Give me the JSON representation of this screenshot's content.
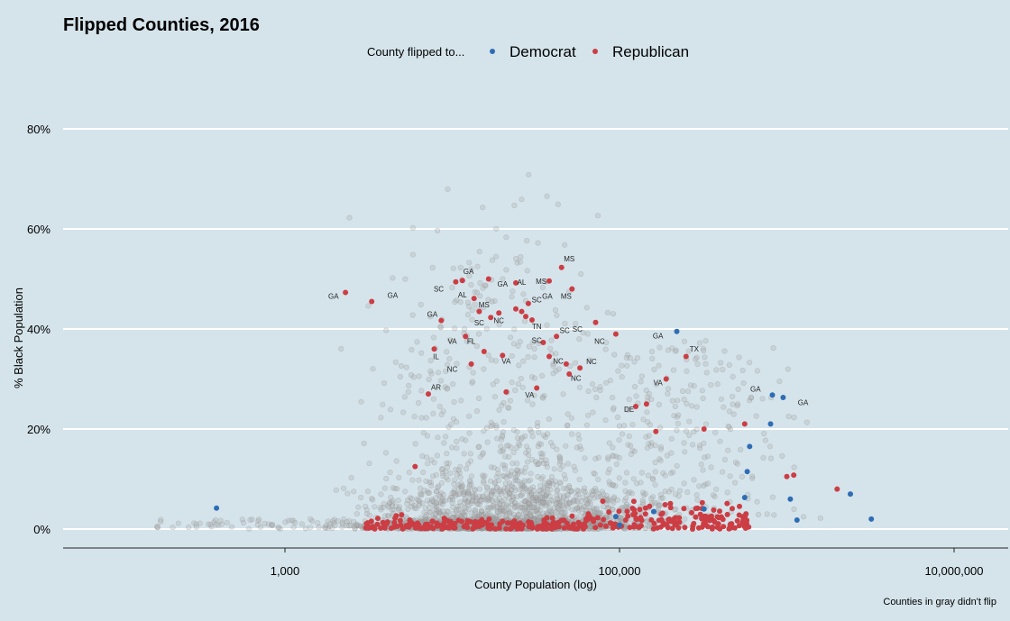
{
  "chart_data": {
    "type": "scatter",
    "title": "Flipped Counties, 2016",
    "xlabel": "County Population (log)",
    "ylabel": "% Black Population",
    "caption": "Counties in gray didn't flip",
    "x_scale": "log10",
    "xlim": [
      80,
      20000000
    ],
    "ylim": [
      -4,
      90
    ],
    "x_ticks": [
      1000,
      100000,
      10000000
    ],
    "x_tick_labels": [
      "1,000",
      "100,000",
      "10,000,000"
    ],
    "y_ticks": [
      0,
      20,
      40,
      60,
      80
    ],
    "y_tick_labels": [
      "0%",
      "20%",
      "40%",
      "60%",
      "80%"
    ],
    "grid": "horizontal major",
    "legend": {
      "title": "County flipped to...",
      "position": "top",
      "entries": [
        {
          "name": "Democrat",
          "color": "#2e6db4"
        },
        {
          "name": "Republican",
          "color": "#cc3d44"
        }
      ]
    },
    "colors": {
      "background": "#d5e4eb",
      "grid": "#ffffff",
      "gray_points": "#a8a8a8",
      "democrat": "#2e6db4",
      "republican": "#cc3d44"
    },
    "series": [
      {
        "name": "Democrat",
        "points": [
          {
            "x": 390,
            "y": 4.2
          },
          {
            "x": 95000,
            "y": 2.5
          },
          {
            "x": 100000,
            "y": 0.8
          },
          {
            "x": 160000,
            "y": 3.5
          },
          {
            "x": 220000,
            "y": 39.5
          },
          {
            "x": 320000,
            "y": 4
          },
          {
            "x": 560000,
            "y": 6.3
          },
          {
            "x": 580000,
            "y": 11.5
          },
          {
            "x": 600000,
            "y": 16.5
          },
          {
            "x": 800000,
            "y": 21
          },
          {
            "x": 820000,
            "y": 26.8
          },
          {
            "x": 950000,
            "y": 26.3
          },
          {
            "x": 1050000,
            "y": 6
          },
          {
            "x": 1150000,
            "y": 1.8
          },
          {
            "x": 2400000,
            "y": 7
          },
          {
            "x": 3200000,
            "y": 2
          }
        ]
      },
      {
        "name": "Republican",
        "points": [
          {
            "x": 2300,
            "y": 47.3
          },
          {
            "x": 3300,
            "y": 45.5
          },
          {
            "x": 6000,
            "y": 12.5
          },
          {
            "x": 7200,
            "y": 27
          },
          {
            "x": 7800,
            "y": 36
          },
          {
            "x": 8600,
            "y": 41.7
          },
          {
            "x": 10500,
            "y": 49.4
          },
          {
            "x": 11500,
            "y": 49.7
          },
          {
            "x": 12000,
            "y": 38.5
          },
          {
            "x": 13000,
            "y": 33
          },
          {
            "x": 13500,
            "y": 46.1
          },
          {
            "x": 14500,
            "y": 43.5
          },
          {
            "x": 15500,
            "y": 35.5
          },
          {
            "x": 16500,
            "y": 50
          },
          {
            "x": 17000,
            "y": 42.3
          },
          {
            "x": 19000,
            "y": 43.2
          },
          {
            "x": 20000,
            "y": 34.7
          },
          {
            "x": 21000,
            "y": 27.4
          },
          {
            "x": 24000,
            "y": 49.2
          },
          {
            "x": 24000,
            "y": 44
          },
          {
            "x": 26000,
            "y": 43.5
          },
          {
            "x": 27500,
            "y": 42.5
          },
          {
            "x": 28500,
            "y": 45.1
          },
          {
            "x": 30000,
            "y": 41.8
          },
          {
            "x": 32000,
            "y": 28.2
          },
          {
            "x": 35000,
            "y": 37.3
          },
          {
            "x": 38000,
            "y": 34.5
          },
          {
            "x": 38000,
            "y": 49.6
          },
          {
            "x": 42000,
            "y": 38.5
          },
          {
            "x": 45000,
            "y": 52.3
          },
          {
            "x": 48000,
            "y": 33
          },
          {
            "x": 50000,
            "y": 31
          },
          {
            "x": 52000,
            "y": 48
          },
          {
            "x": 58000,
            "y": 32.2
          },
          {
            "x": 72000,
            "y": 41.3
          },
          {
            "x": 95000,
            "y": 39
          },
          {
            "x": 125000,
            "y": 24.5
          },
          {
            "x": 145000,
            "y": 25
          },
          {
            "x": 165000,
            "y": 19.5
          },
          {
            "x": 190000,
            "y": 30
          },
          {
            "x": 250000,
            "y": 34.5
          },
          {
            "x": 320000,
            "y": 20
          },
          {
            "x": 560000,
            "y": 21
          },
          {
            "x": 1000000,
            "y": 10.5
          },
          {
            "x": 1100000,
            "y": 10.8
          },
          {
            "x": 2000000,
            "y": 8
          }
        ]
      }
    ],
    "republican_low_cluster": {
      "x_range": [
        3000,
        600000
      ],
      "y_range": [
        0,
        12
      ]
    },
    "unflipped_points_note": "gray points",
    "point_labels": [
      {
        "text": "GA",
        "x": 1950,
        "y": 46
      },
      {
        "text": "GA",
        "x": 4400,
        "y": 46.2
      },
      {
        "text": "SC",
        "x": 8300,
        "y": 47.5
      },
      {
        "text": "GA",
        "x": 12500,
        "y": 51
      },
      {
        "text": "AL",
        "x": 11500,
        "y": 46.3
      },
      {
        "text": "GA",
        "x": 7600,
        "y": 42.4
      },
      {
        "text": "GA",
        "x": 20000,
        "y": 48.5
      },
      {
        "text": "AL",
        "x": 26000,
        "y": 48.8
      },
      {
        "text": "MS",
        "x": 34000,
        "y": 49
      },
      {
        "text": "MS",
        "x": 15500,
        "y": 44.3
      },
      {
        "text": "SC",
        "x": 14500,
        "y": 40.7
      },
      {
        "text": "NC",
        "x": 19000,
        "y": 41.2
      },
      {
        "text": "SC",
        "x": 32000,
        "y": 45.3
      },
      {
        "text": "GA",
        "x": 37000,
        "y": 46
      },
      {
        "text": "MS",
        "x": 48000,
        "y": 46
      },
      {
        "text": "MS",
        "x": 50000,
        "y": 53.5
      },
      {
        "text": "TN",
        "x": 32000,
        "y": 40
      },
      {
        "text": "SC",
        "x": 47000,
        "y": 39.2
      },
      {
        "text": "SC",
        "x": 56000,
        "y": 39.5
      },
      {
        "text": "NC",
        "x": 76000,
        "y": 37
      },
      {
        "text": "SC",
        "x": 32000,
        "y": 37.2
      },
      {
        "text": "VA",
        "x": 10000,
        "y": 37
      },
      {
        "text": "FL",
        "x": 13000,
        "y": 37
      },
      {
        "text": "IL",
        "x": 8000,
        "y": 34
      },
      {
        "text": "NC",
        "x": 10000,
        "y": 31.4
      },
      {
        "text": "VA",
        "x": 21000,
        "y": 33.1
      },
      {
        "text": "NC",
        "x": 43000,
        "y": 33.1
      },
      {
        "text": "NC",
        "x": 68000,
        "y": 33
      },
      {
        "text": "NC",
        "x": 55000,
        "y": 29.6
      },
      {
        "text": "VA",
        "x": 29000,
        "y": 26.3
      },
      {
        "text": "AR",
        "x": 8000,
        "y": 27.8
      },
      {
        "text": "DE",
        "x": 114000,
        "y": 23.4
      },
      {
        "text": "GA",
        "x": 170000,
        "y": 38.1
      },
      {
        "text": "TX",
        "x": 280000,
        "y": 35.5
      },
      {
        "text": "VA",
        "x": 170000,
        "y": 28.7
      },
      {
        "text": "GA",
        "x": 650000,
        "y": 27.5
      },
      {
        "text": "GA",
        "x": 1250000,
        "y": 24.8
      }
    ]
  }
}
